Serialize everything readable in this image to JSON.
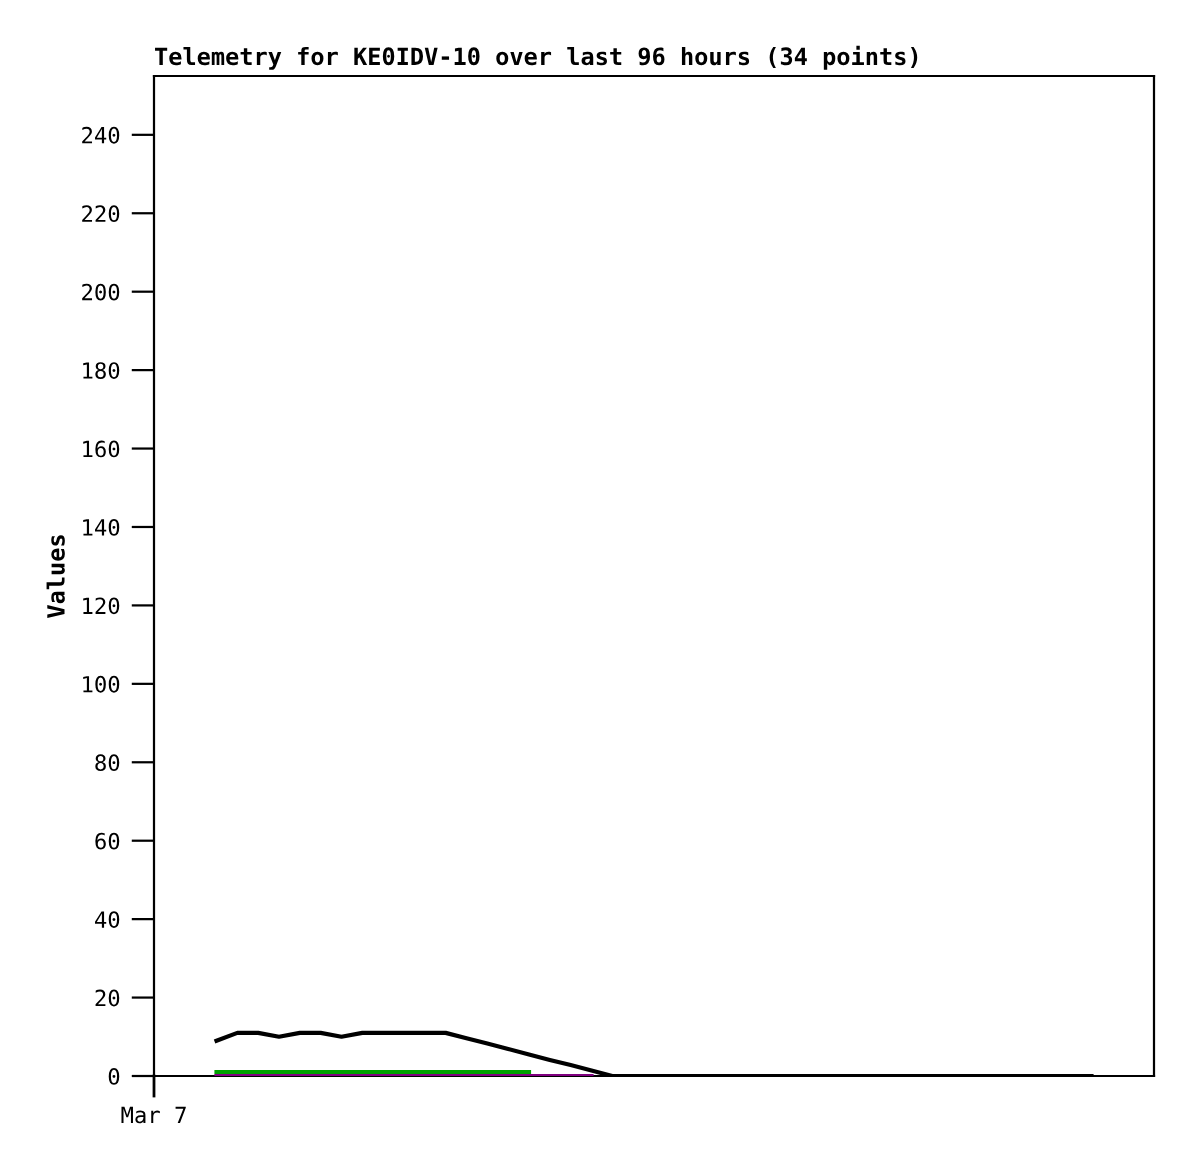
{
  "chart_data": {
    "type": "line",
    "title": "Telemetry for KE0IDV-10 over last 96 hours (34 points)",
    "ylabel": "Values",
    "annotations": [
      "Mar 7"
    ],
    "categories": [
      null,
      null,
      null,
      null,
      null,
      null,
      null,
      null,
      null,
      null,
      null,
      null,
      null,
      null,
      null,
      null,
      null,
      null,
      null,
      null,
      null,
      null,
      null,
      null,
      null,
      null,
      null,
      null,
      null,
      null,
      null,
      null,
      null,
      null,
      null,
      null,
      null,
      null,
      null,
      null,
      null,
      null,
      null,
      null,
      null,
      null,
      null,
      null
    ],
    "ylim": [
      0,
      255
    ],
    "yticks": [
      0,
      20,
      40,
      60,
      80,
      100,
      120,
      140,
      160,
      180,
      200,
      220,
      240
    ],
    "grid": false,
    "legend": false,
    "tick_labels": "y",
    "series": [
      {
        "color": "#800080",
        "values": [
          null,
          null,
          null,
          0,
          0,
          0,
          0,
          0,
          0,
          0,
          0,
          0,
          0,
          0,
          0,
          0,
          0,
          0,
          0,
          0,
          0,
          0,
          null,
          null,
          null,
          null,
          null,
          null,
          null,
          null,
          null,
          null,
          null,
          null,
          null,
          null,
          null,
          null,
          null,
          null,
          null,
          null,
          null,
          null,
          null,
          null,
          null,
          null
        ]
      },
      {
        "color": "#00a000",
        "values": [
          null,
          null,
          null,
          1,
          1,
          1,
          1,
          1,
          1,
          1,
          1,
          1,
          1,
          1,
          1,
          1,
          1,
          1,
          1,
          null,
          null,
          null,
          null,
          null,
          null,
          null,
          null,
          null,
          null,
          null,
          null,
          null,
          null,
          null,
          null,
          null,
          null,
          null,
          null,
          null,
          null,
          null,
          null,
          null,
          null,
          null,
          null,
          null
        ]
      },
      {
        "color": "#000000",
        "values": [
          null,
          null,
          null,
          9,
          11,
          11,
          10,
          11,
          11,
          10,
          11,
          11,
          11,
          11,
          11,
          9.6,
          8.3,
          6.9,
          5.5,
          4.1,
          2.8,
          1.4,
          0,
          0,
          0,
          0,
          0,
          0,
          0,
          0,
          0,
          0,
          0,
          0,
          0,
          0,
          0,
          0,
          0,
          0,
          0,
          0,
          0,
          0,
          0,
          0,
          null,
          null
        ]
      }
    ]
  }
}
